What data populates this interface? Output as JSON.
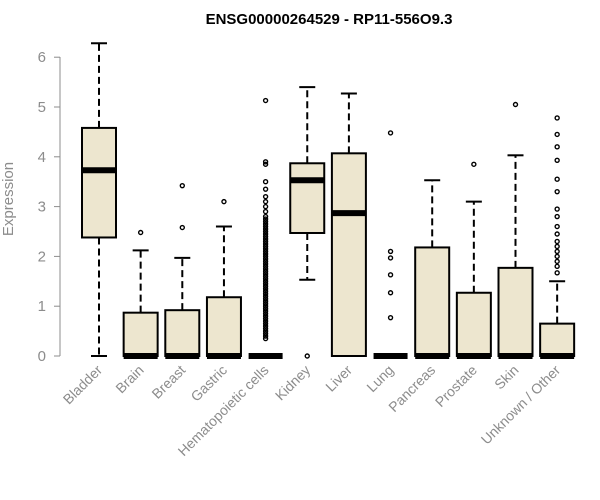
{
  "chart_data": {
    "type": "box",
    "title": "ENSG00000264529 - RP11-556O9.3",
    "ylabel": "Expression",
    "xlabel": "",
    "ylim": [
      0,
      6.3
    ],
    "yticks": [
      0,
      1,
      2,
      3,
      4,
      5,
      6
    ],
    "box_fill": "#ede6cf",
    "categories": [
      "Bladder",
      "Brain",
      "Breast",
      "Gastric",
      "Hematopoietic cells",
      "Kidney",
      "Liver",
      "Lung",
      "Pancreas",
      "Prostate",
      "Skin",
      "Unknown / Other"
    ],
    "boxes": [
      {
        "category": "Bladder",
        "whisker_low": 0,
        "q1": 2.38,
        "median": 3.73,
        "q3": 4.58,
        "whisker_high": 6.28,
        "outliers": []
      },
      {
        "category": "Brain",
        "whisker_low": 0,
        "q1": 0,
        "median": 0,
        "q3": 0.87,
        "whisker_high": 2.12,
        "outliers": [
          2.48
        ]
      },
      {
        "category": "Breast",
        "whisker_low": 0,
        "q1": 0,
        "median": 0,
        "q3": 0.92,
        "whisker_high": 1.97,
        "outliers": [
          2.58,
          3.42
        ]
      },
      {
        "category": "Gastric",
        "whisker_low": 0,
        "q1": 0,
        "median": 0,
        "q3": 1.18,
        "whisker_high": 2.6,
        "outliers": [
          3.1
        ]
      },
      {
        "category": "Hematopoietic cells",
        "whisker_low": 0,
        "q1": 0,
        "median": 0,
        "q3": 0,
        "whisker_high": 0,
        "outliers": [
          0.35,
          0.4,
          0.45,
          0.5,
          0.55,
          0.6,
          0.65,
          0.7,
          0.75,
          0.8,
          0.85,
          0.9,
          0.95,
          1.0,
          1.05,
          1.1,
          1.15,
          1.2,
          1.25,
          1.3,
          1.35,
          1.4,
          1.45,
          1.5,
          1.55,
          1.6,
          1.65,
          1.7,
          1.75,
          1.8,
          1.85,
          1.9,
          1.95,
          2.0,
          2.05,
          2.1,
          2.15,
          2.2,
          2.25,
          2.3,
          2.35,
          2.4,
          2.45,
          2.5,
          2.55,
          2.6,
          2.65,
          2.7,
          2.75,
          2.8,
          2.9,
          3.0,
          3.1,
          3.2,
          3.35,
          3.5,
          3.85,
          3.9,
          5.13
        ]
      },
      {
        "category": "Kidney",
        "whisker_low": 1.53,
        "q1": 2.47,
        "median": 3.53,
        "q3": 3.87,
        "whisker_high": 5.4,
        "outliers": [
          0
        ]
      },
      {
        "category": "Liver",
        "whisker_low": 0,
        "q1": 0,
        "median": 2.87,
        "q3": 4.07,
        "whisker_high": 5.27,
        "outliers": []
      },
      {
        "category": "Lung",
        "whisker_low": 0,
        "q1": 0,
        "median": 0,
        "q3": 0,
        "whisker_high": 0,
        "outliers": [
          0.77,
          1.27,
          1.63,
          1.97,
          2.1,
          4.48
        ]
      },
      {
        "category": "Pancreas",
        "whisker_low": 0,
        "q1": 0,
        "median": 0,
        "q3": 2.18,
        "whisker_high": 3.53,
        "outliers": []
      },
      {
        "category": "Prostate",
        "whisker_low": 0,
        "q1": 0,
        "median": 0,
        "q3": 1.27,
        "whisker_high": 3.1,
        "outliers": [
          3.85
        ]
      },
      {
        "category": "Skin",
        "whisker_low": 0,
        "q1": 0,
        "median": 0,
        "q3": 1.77,
        "whisker_high": 4.03,
        "outliers": [
          5.05
        ]
      },
      {
        "category": "Unknown / Other",
        "whisker_low": 0,
        "q1": 0,
        "median": 0,
        "q3": 0.65,
        "whisker_high": 1.5,
        "outliers": [
          1.67,
          1.8,
          1.9,
          2.0,
          2.1,
          2.2,
          2.3,
          2.45,
          2.6,
          2.8,
          2.95,
          3.3,
          3.55,
          3.93,
          4.2,
          4.45,
          4.78
        ]
      }
    ]
  }
}
